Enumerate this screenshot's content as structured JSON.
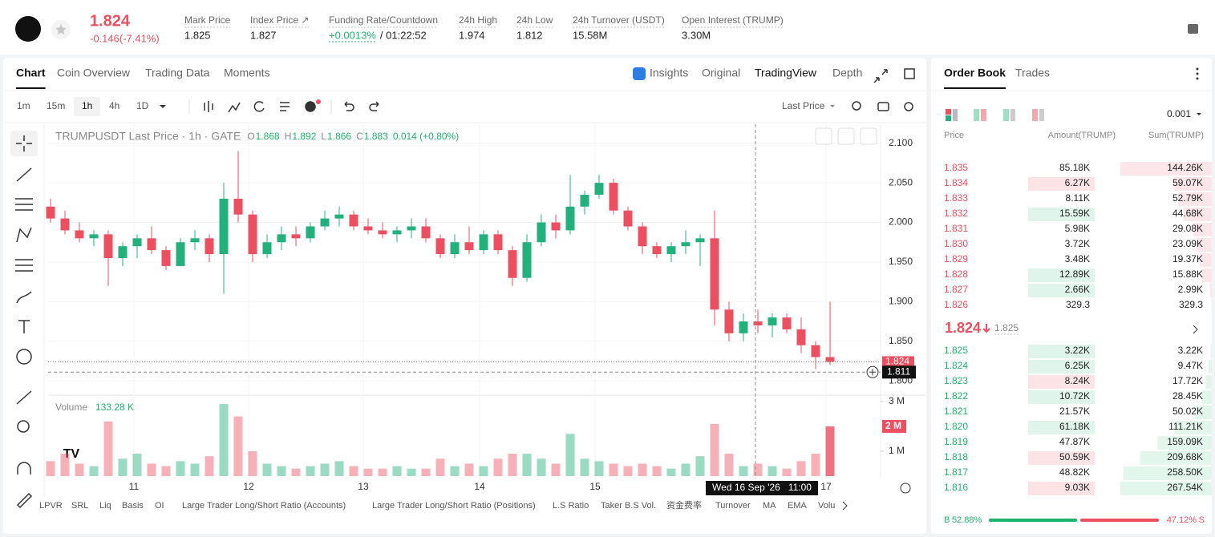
{
  "header": {
    "price": "1.824",
    "change": "-0.146(-7.41%)",
    "stats": [
      {
        "label": "Mark Price",
        "value": "1.825"
      },
      {
        "label": "Index Price ↗",
        "value": "1.827"
      },
      {
        "label": "Funding Rate/Countdown",
        "value": "+0.0013%",
        "countdown": "/ 01:22:52"
      },
      {
        "label": "24h High",
        "value": "1.974"
      },
      {
        "label": "24h Low",
        "value": "1.812"
      },
      {
        "label": "24h Turnover (USDT)",
        "value": "15.58M"
      },
      {
        "label": "Open Interest (TRUMP)",
        "value": "3.30M"
      }
    ]
  },
  "tabs": [
    "Chart",
    "Coin Overview",
    "Trading Data",
    "Moments"
  ],
  "view_tabs": [
    "Insights",
    "Original",
    "TradingView",
    "Depth"
  ],
  "intervals": [
    "1m",
    "15m",
    "1h",
    "4h",
    "1D"
  ],
  "price_source": "Last Price",
  "legend": {
    "symbol": "TRUMPUSDT Last Price · 1h · GATE",
    "ohlc": [
      {
        "key": "O",
        "value": "1.868"
      },
      {
        "key": "H",
        "value": "1.892"
      },
      {
        "key": "L",
        "value": "1.866"
      },
      {
        "key": "C",
        "value": "1.883"
      }
    ],
    "change": "0.014 (+0.80%)"
  },
  "chart_data": {
    "type": "candlestick",
    "open": [
      2.02,
      2.005,
      1.99,
      1.98,
      1.985,
      1.955,
      1.97,
      1.98,
      1.965,
      1.945,
      1.975,
      1.98,
      1.96,
      2.03,
      2.01,
      1.96,
      1.975,
      1.985,
      1.98,
      1.995,
      2.005,
      2.01,
      1.995,
      1.99,
      1.985,
      1.99,
      1.995,
      1.98,
      1.96,
      1.975,
      1.965,
      1.985,
      1.965,
      1.93,
      1.975,
      2.0,
      1.99,
      2.02,
      2.035,
      2.05,
      2.015,
      1.995,
      1.97,
      1.96,
      1.97,
      1.975,
      1.98,
      1.89,
      1.86,
      1.875,
      1.87,
      1.88,
      1.865,
      1.845,
      1.83
    ],
    "high": [
      2.03,
      2.015,
      2.0,
      1.99,
      1.99,
      1.975,
      1.985,
      1.995,
      1.97,
      1.98,
      1.99,
      1.985,
      2.05,
      2.09,
      2.015,
      1.985,
      1.995,
      1.995,
      2.0,
      2.015,
      2.02,
      2.015,
      2.005,
      2.0,
      1.995,
      2.005,
      2.005,
      1.985,
      1.985,
      1.995,
      1.99,
      1.99,
      1.97,
      1.985,
      2.01,
      2.01,
      2.06,
      2.04,
      2.06,
      2.055,
      2.02,
      2.0,
      1.975,
      1.975,
      1.99,
      1.985,
      2.015,
      1.9,
      1.885,
      1.89,
      1.885,
      1.885,
      1.88,
      1.85,
      1.9
    ],
    "low": [
      2.0,
      1.985,
      1.975,
      1.97,
      1.92,
      1.945,
      1.955,
      1.96,
      1.94,
      1.945,
      1.965,
      1.95,
      1.91,
      2.0,
      1.95,
      1.955,
      1.965,
      1.97,
      1.975,
      1.99,
      1.995,
      1.99,
      1.985,
      1.98,
      1.975,
      1.98,
      1.975,
      1.955,
      1.955,
      1.96,
      1.96,
      1.96,
      1.92,
      1.925,
      1.97,
      1.98,
      1.985,
      2.01,
      2.03,
      2.01,
      1.99,
      1.96,
      1.955,
      1.95,
      1.96,
      1.945,
      1.87,
      1.85,
      1.85,
      1.86,
      1.855,
      1.86,
      1.835,
      1.815,
      1.82
    ],
    "close": [
      2.005,
      1.99,
      1.98,
      1.985,
      1.955,
      1.97,
      1.98,
      1.965,
      1.945,
      1.975,
      1.98,
      1.96,
      2.03,
      2.01,
      1.96,
      1.975,
      1.985,
      1.98,
      1.995,
      2.005,
      2.01,
      1.995,
      1.99,
      1.985,
      1.99,
      1.995,
      1.98,
      1.96,
      1.975,
      1.965,
      1.985,
      1.965,
      1.93,
      1.975,
      2.0,
      1.99,
      2.02,
      2.035,
      2.05,
      2.015,
      1.995,
      1.97,
      1.96,
      1.97,
      1.975,
      1.98,
      1.89,
      1.86,
      1.875,
      1.87,
      1.88,
      1.865,
      1.845,
      1.83,
      1.824
    ],
    "volume": [
      600000,
      900000,
      500000,
      400000,
      2200000,
      700000,
      900000,
      500000,
      400000,
      600000,
      500000,
      800000,
      2900000,
      2400000,
      1000000,
      500000,
      400000,
      300000,
      400000,
      500000,
      600000,
      400000,
      300000,
      300000,
      400000,
      300000,
      300000,
      700000,
      400000,
      500000,
      400000,
      700000,
      900000,
      900000,
      700000,
      500000,
      1700000,
      700000,
      600000,
      500000,
      400000,
      500000,
      400000,
      300000,
      500000,
      800000,
      2100000,
      900000,
      400000,
      500000,
      400000,
      300000,
      600000,
      900000,
      2000000
    ],
    "ylim": [
      1.785,
      2.124
    ],
    "yticks": [
      {
        "value": 1.8,
        "label": "1.800"
      },
      {
        "value": 1.85,
        "label": "1.850"
      },
      {
        "value": 1.9,
        "label": "1.900"
      },
      {
        "value": 1.95,
        "label": "1.950"
      },
      {
        "value": 2.0,
        "label": "2.000"
      },
      {
        "value": 2.05,
        "label": "2.050"
      },
      {
        "value": 2.1,
        "label": "2.100"
      }
    ],
    "volume_ylim": [
      0,
      3160000
    ],
    "volume_yticks": [
      {
        "value": 1000000,
        "label": "1 M"
      },
      {
        "value": 3000000,
        "label": "3 M"
      }
    ],
    "volume_marker": {
      "value": 2000000,
      "label": "2 M"
    },
    "x_labels": [
      "11",
      "12",
      "13",
      "14",
      "15",
      "17"
    ],
    "last_price": 1.824,
    "crosshair_price": 1.811,
    "crosshair_time": "Wed 16 Sep '26   11:00",
    "volume_title": "Volume",
    "volume_value": "133.28 K",
    "up_color": "#22b07d",
    "down_color": "#eb4f60",
    "grid": true
  },
  "indicators": [
    "LPVR",
    "SRL",
    "Liq",
    "Basis",
    "OI",
    "Large Trader Long/Short Ratio (Accounts)",
    "Large Trader Long/Short Ratio (Positions)",
    "L.S Ratio",
    "Taker B.S Vol.",
    "资金费率",
    "Turnover",
    "MA",
    "EMA",
    "Volu"
  ],
  "order_book": {
    "tabs": [
      "Order Book",
      "Trades"
    ],
    "precision": "0.001",
    "columns": [
      "Price",
      "Amount(TRUMP)",
      "Sum(TRUMP)"
    ],
    "asks": [
      [
        "1.835",
        "85.18K",
        {
          "value": 144260,
          "label": "144.26K"
        }
      ],
      [
        "1.834",
        "6.27K",
        {
          "value": 59070,
          "label": "59.07K"
        }
      ],
      [
        "1.833",
        "8.11K",
        {
          "value": 52790,
          "label": "52.79K"
        }
      ],
      [
        "1.832",
        "15.59K",
        {
          "value": 44680,
          "label": "44.68K"
        }
      ],
      [
        "1.831",
        "5.98K",
        {
          "value": 29080,
          "label": "29.08K"
        }
      ],
      [
        "1.830",
        "3.72K",
        {
          "value": 23090,
          "label": "23.09K"
        }
      ],
      [
        "1.829",
        "3.48K",
        {
          "value": 19370,
          "label": "19.37K"
        }
      ],
      [
        "1.828",
        "12.89K",
        {
          "value": 15880,
          "label": "15.88K"
        }
      ],
      [
        "1.827",
        "2.66K",
        {
          "value": 2990,
          "label": "2.99K"
        }
      ],
      [
        "1.826",
        "329.3",
        329.3
      ]
    ],
    "mid_price": "1.824",
    "mid_mark": "1.825",
    "bids": [
      [
        "1.825",
        "3.22K",
        {
          "value": 3220,
          "label": "3.22K"
        }
      ],
      [
        "1.824",
        "6.25K",
        {
          "value": 9470,
          "label": "9.47K"
        }
      ],
      [
        "1.823",
        "8.24K",
        {
          "value": 17720,
          "label": "17.72K"
        }
      ],
      [
        "1.822",
        "10.72K",
        {
          "value": 28450,
          "label": "28.45K"
        }
      ],
      [
        "1.821",
        "21.57K",
        {
          "value": 50020,
          "label": "50.02K"
        }
      ],
      [
        "1.820",
        "61.18K",
        {
          "value": 111210,
          "label": "111.21K"
        }
      ],
      [
        "1.819",
        "47.87K",
        {
          "value": 159090,
          "label": "159.09K"
        }
      ],
      [
        "1.818",
        "50.59K",
        {
          "value": 209680,
          "label": "209.68K"
        }
      ],
      [
        "1.817",
        "48.82K",
        {
          "value": 258500,
          "label": "258.50K"
        }
      ],
      [
        "1.816",
        "9.03K",
        {
          "value": 267540,
          "label": "267.54K"
        }
      ]
    ],
    "buy_label": "B",
    "buy_ratio": {
      "value": 52.88,
      "label": "52.88%"
    },
    "sell_ratio": {
      "value": 47.12,
      "label": "47.12%"
    },
    "sell_label": "S"
  }
}
